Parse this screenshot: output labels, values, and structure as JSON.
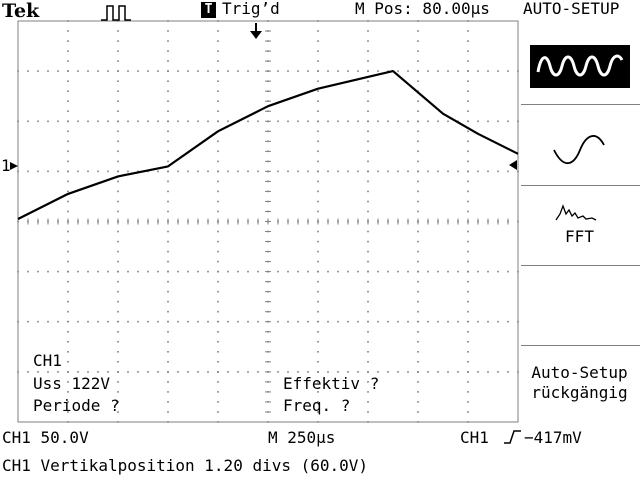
{
  "header": {
    "brand": "Tek",
    "trigger_badge": "T",
    "trigger_status": "Trig’d",
    "position": "M Pos: 80.00µs",
    "menu_title": "AUTO-SETUP"
  },
  "side_menu": {
    "items": [
      {
        "icon": "multi-cycle-sine-icon"
      },
      {
        "icon": "single-cycle-sine-icon"
      },
      {
        "icon": "fft-icon",
        "label": "FFT"
      },
      {
        "label_line1": "Auto-Setup",
        "label_line2": "rückgängig"
      }
    ]
  },
  "measurements": {
    "channel": "CH1",
    "vpp": "Uss 122V",
    "period": "Periode ?",
    "rms": "Effektiv ?",
    "freq": "Freq. ?"
  },
  "status_bar": {
    "ch1_scale": "CH1  50.0V",
    "timebase": "M 250µs",
    "trigger_source": "CH1",
    "trigger_level": "−417mV"
  },
  "message": "CH1 Vertikalposition 1.20 divs (60.0V)",
  "markers": {
    "ch1_ground": "1"
  },
  "waveform": {
    "channel": "CH1",
    "shape": "triangle",
    "points_div": [
      [
        0.0,
        3.95
      ],
      [
        1.0,
        3.45
      ],
      [
        2.0,
        3.1
      ],
      [
        3.0,
        2.9
      ],
      [
        4.0,
        2.2
      ],
      [
        5.0,
        1.7
      ],
      [
        6.0,
        1.35
      ],
      [
        7.5,
        1.0
      ],
      [
        8.5,
        1.85
      ],
      [
        9.2,
        2.25
      ],
      [
        10.0,
        2.65
      ]
    ]
  }
}
